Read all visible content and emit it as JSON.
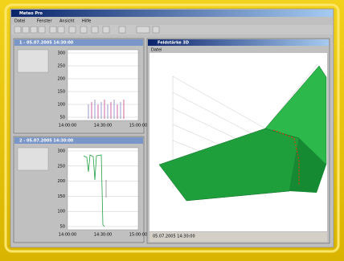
{
  "app": {
    "title": "Meteo Pro",
    "menu": [
      "Datei",
      "Fenster",
      "Ansicht",
      "Hilfe"
    ]
  },
  "panels": [
    {
      "title": "1 - 05.07.2005 14:30:00",
      "y_labels": [
        "300",
        "250",
        "200",
        "150",
        "100",
        "50"
      ],
      "x_labels": [
        "14:00:00",
        "14:30:00",
        "15:00:00"
      ]
    },
    {
      "title": "2 - 05.07.2005 14:30:00",
      "y_labels": [
        "300",
        "250",
        "200",
        "150",
        "100",
        "50"
      ],
      "x_labels": [
        "14:00:00",
        "14:30:00",
        "15:00:00"
      ]
    }
  ],
  "plot3d": {
    "title": "Feldstärke 3D",
    "menu": "Datei",
    "status": "05.07.2005 14:30:00"
  }
}
